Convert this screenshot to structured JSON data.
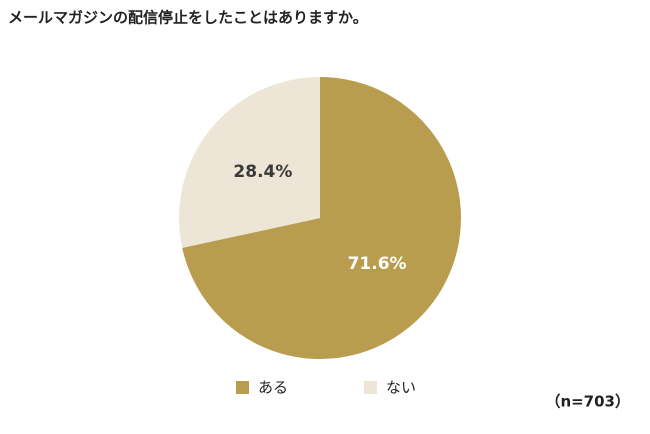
{
  "chart_data": {
    "type": "pie",
    "title": "メールマガジンの配信停止をしたことはありますか。",
    "categories": [
      "ある",
      "ない"
    ],
    "values": [
      71.6,
      28.4
    ],
    "value_labels": [
      "71.6%",
      "28.4%"
    ],
    "colors": [
      "#b89d4f",
      "#ede5d5"
    ],
    "label_colors": [
      "#ffffff",
      "#3a3a3a"
    ],
    "note": "（n=703）"
  }
}
